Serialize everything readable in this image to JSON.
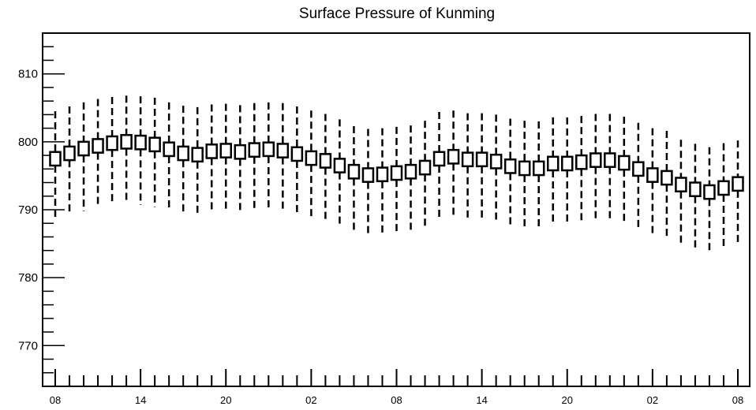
{
  "chart_data": {
    "type": "box",
    "title": "Surface Pressure of Kunming",
    "xlabel": "",
    "ylabel": "",
    "ylim": [
      764,
      816
    ],
    "yticks_major": [
      770,
      780,
      790,
      800,
      810
    ],
    "ytick_labels": [
      "770",
      "780",
      "790",
      "800",
      "810"
    ],
    "xtick_labels": [
      "08",
      "14",
      "20",
      "02",
      "08",
      "14",
      "20",
      "02",
      "08"
    ],
    "xtick_label_positions": [
      0,
      6,
      12,
      18,
      24,
      30,
      36,
      42,
      48
    ],
    "grid": false,
    "series": [
      {
        "x": [
          0,
          1,
          2,
          3,
          4,
          5,
          6,
          7,
          8,
          9,
          10,
          11,
          12,
          13,
          14,
          15,
          16,
          17,
          18,
          19,
          20,
          21,
          22,
          23,
          24,
          25,
          26,
          27,
          28,
          29,
          30,
          31,
          32,
          33,
          34,
          35,
          36,
          37,
          38,
          39,
          40,
          41,
          42,
          43,
          44,
          45,
          46,
          47,
          48
        ],
        "mean": [
          797.5,
          798.3,
          799.0,
          799.4,
          799.8,
          800.0,
          799.9,
          799.6,
          798.9,
          798.3,
          798.1,
          798.6,
          798.7,
          798.5,
          798.8,
          798.9,
          798.7,
          798.2,
          797.6,
          797.2,
          796.5,
          795.6,
          795.1,
          795.2,
          795.4,
          795.6,
          796.2,
          797.5,
          797.8,
          797.4,
          797.4,
          797.1,
          796.4,
          796.1,
          796.1,
          796.8,
          796.8,
          797.0,
          797.3,
          797.3,
          796.9,
          796.0,
          795.1,
          794.7,
          793.7,
          793.0,
          792.6,
          793.2,
          793.8
        ],
        "q1": [
          796.5,
          797.3,
          798.0,
          798.4,
          798.8,
          799.0,
          798.9,
          798.6,
          797.9,
          797.3,
          797.1,
          797.6,
          797.7,
          797.5,
          797.8,
          797.9,
          797.7,
          797.2,
          796.6,
          796.2,
          795.5,
          794.6,
          794.1,
          794.2,
          794.4,
          794.6,
          795.2,
          796.5,
          796.8,
          796.4,
          796.4,
          796.1,
          795.4,
          795.1,
          795.1,
          795.8,
          795.8,
          796.0,
          796.3,
          796.3,
          795.9,
          795.0,
          794.1,
          793.7,
          792.7,
          792.0,
          791.6,
          792.2,
          792.8
        ],
        "q3": [
          798.5,
          799.3,
          800.0,
          800.4,
          800.8,
          801.0,
          800.9,
          800.6,
          799.9,
          799.3,
          799.1,
          799.6,
          799.7,
          799.5,
          799.8,
          799.9,
          799.7,
          799.2,
          798.6,
          798.2,
          797.5,
          796.6,
          796.1,
          796.2,
          796.4,
          796.6,
          797.2,
          798.5,
          798.8,
          798.4,
          798.4,
          798.1,
          797.4,
          797.1,
          797.1,
          797.8,
          797.8,
          798.0,
          798.3,
          798.3,
          797.9,
          797.0,
          796.1,
          795.7,
          794.7,
          794.0,
          793.6,
          794.2,
          794.8
        ],
        "whisker_low": [
          788.5,
          789.2,
          789.8,
          790.3,
          790.7,
          790.9,
          790.7,
          790.4,
          789.9,
          789.3,
          789.1,
          789.5,
          789.6,
          789.4,
          789.7,
          789.8,
          789.7,
          789.2,
          788.6,
          788.1,
          787.6,
          786.6,
          786.1,
          786.2,
          786.4,
          786.6,
          787.3,
          788.4,
          788.7,
          788.3,
          788.3,
          788.0,
          787.4,
          787.1,
          787.0,
          787.7,
          787.7,
          787.9,
          788.2,
          788.2,
          787.8,
          786.9,
          786.1,
          785.6,
          784.8,
          784.0,
          783.6,
          784.2,
          784.8
        ],
        "whisker_high": [
          804.5,
          805.2,
          805.8,
          806.3,
          806.6,
          806.8,
          806.7,
          806.5,
          805.8,
          805.3,
          805.1,
          805.5,
          805.6,
          805.4,
          805.7,
          805.8,
          805.7,
          805.2,
          804.6,
          804.1,
          803.3,
          802.3,
          801.9,
          802.0,
          802.2,
          802.4,
          803.1,
          804.4,
          804.6,
          804.2,
          804.2,
          804.0,
          803.4,
          803.1,
          803.0,
          803.6,
          803.6,
          803.8,
          804.1,
          804.1,
          803.7,
          802.8,
          802.0,
          801.6,
          800.3,
          799.7,
          799.2,
          799.8,
          800.2
        ]
      }
    ]
  }
}
